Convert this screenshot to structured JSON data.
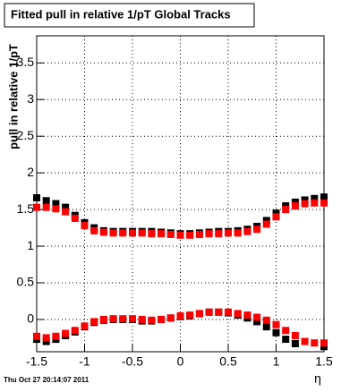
{
  "chart_data": {
    "type": "scatter",
    "title": "Fitted pull in relative 1/pT  Global Tracks",
    "y_label": "pull in relative 1/pT",
    "x_label": "η",
    "footer": "Thu Oct 27 20:14:07 2011",
    "x": [
      -1.5,
      -1.4,
      -1.3,
      -1.2,
      -1.1,
      -1.0,
      -0.9,
      -0.8,
      -0.7,
      -0.6,
      -0.5,
      -0.4,
      -0.3,
      -0.2,
      -0.1,
      0,
      0.1,
      0.2,
      0.3,
      0.4,
      0.5,
      0.6,
      0.7,
      0.8,
      0.9,
      1.0,
      1.1,
      1.2,
      1.3,
      1.4,
      1.5
    ],
    "series": [
      {
        "color": "#000000",
        "values": [
          1.66,
          1.62,
          1.58,
          1.53,
          1.42,
          1.32,
          1.25,
          1.21,
          1.2,
          1.2,
          1.2,
          1.2,
          1.2,
          1.19,
          1.18,
          1.17,
          1.17,
          1.18,
          1.19,
          1.2,
          1.2,
          1.21,
          1.23,
          1.27,
          1.35,
          1.45,
          1.55,
          1.6,
          1.63,
          1.65,
          1.67
        ]
      },
      {
        "color": "#000000",
        "values": [
          -0.27,
          -0.3,
          -0.27,
          -0.22,
          -0.17,
          -0.1,
          -0.04,
          -0.01,
          0.0,
          0.0,
          0.0,
          -0.02,
          -0.02,
          0.0,
          0.02,
          0.04,
          0.05,
          0.08,
          0.1,
          0.1,
          0.09,
          0.06,
          0.02,
          -0.03,
          -0.1,
          -0.18,
          -0.27,
          -0.33,
          null,
          null,
          -0.37
        ]
      },
      {
        "color": "#ff0000",
        "values": [
          1.53,
          1.53,
          1.51,
          1.47,
          1.38,
          1.28,
          1.21,
          1.19,
          1.18,
          1.18,
          1.18,
          1.18,
          1.17,
          1.17,
          1.16,
          1.15,
          1.15,
          1.16,
          1.17,
          1.17,
          1.18,
          1.18,
          1.2,
          1.23,
          1.3,
          1.4,
          1.5,
          1.55,
          1.58,
          1.59,
          1.59
        ]
      },
      {
        "color": "#ff0000",
        "values": [
          -0.23,
          -0.25,
          -0.23,
          -0.19,
          -0.15,
          -0.09,
          -0.03,
          0.0,
          0.01,
          0.01,
          0.01,
          0.0,
          -0.01,
          0.0,
          0.02,
          0.05,
          0.06,
          0.08,
          0.1,
          0.1,
          0.1,
          0.08,
          0.06,
          0.03,
          -0.01,
          -0.07,
          -0.15,
          -0.22,
          -0.3,
          -0.32,
          -0.32
        ]
      }
    ],
    "xlim": [
      -1.5,
      1.5
    ],
    "ylim": [
      -0.44,
      3.87
    ],
    "xticks": [
      -1.5,
      -1,
      -0.5,
      0,
      0.5,
      1,
      1.5
    ],
    "yticks": [
      0,
      0.5,
      1,
      1.5,
      2,
      2.5,
      3,
      3.5
    ],
    "grid": true
  }
}
